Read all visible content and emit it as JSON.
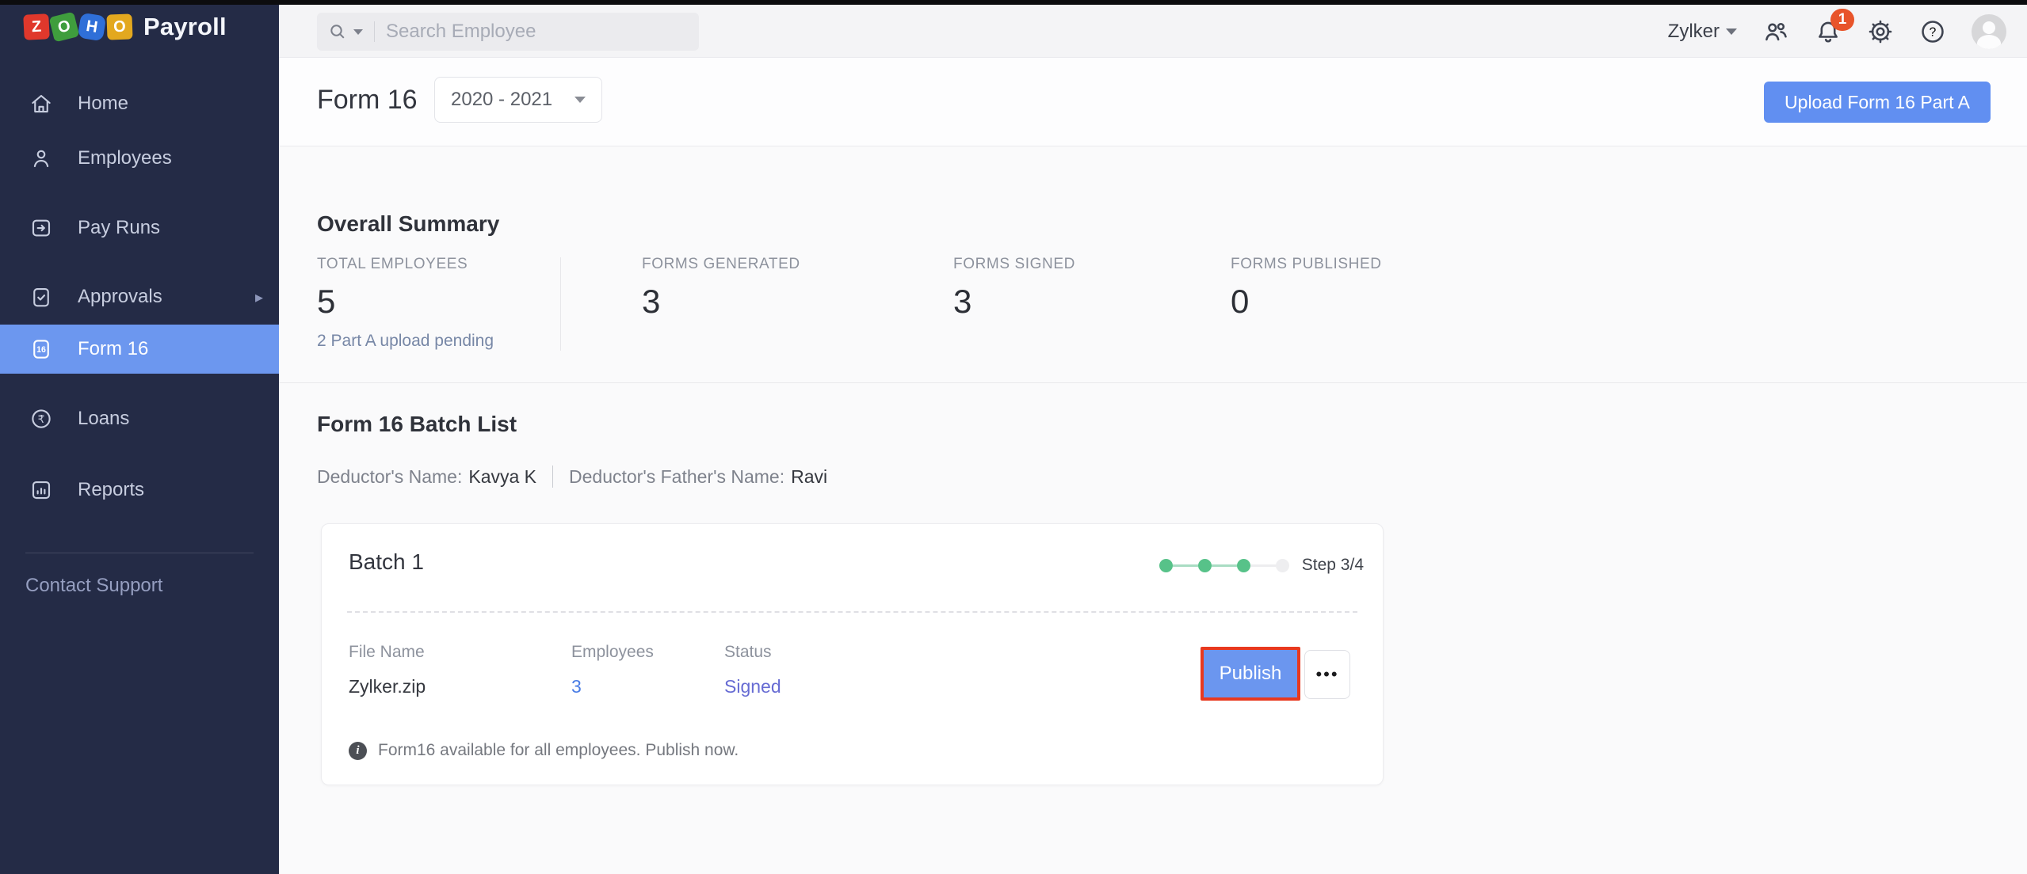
{
  "brand": {
    "letters": [
      "Z",
      "O",
      "H",
      "O"
    ],
    "product": "Payroll"
  },
  "sidebar": {
    "items": [
      {
        "label": "Home"
      },
      {
        "label": "Employees"
      },
      {
        "label": "Pay Runs"
      },
      {
        "label": "Approvals"
      },
      {
        "label": "Form 16"
      },
      {
        "label": "Loans"
      },
      {
        "label": "Reports"
      }
    ],
    "selected_item": "Form 16",
    "support_link": "Contact Support"
  },
  "topbar": {
    "search_placeholder": "Search Employee",
    "org_name": "Zylker",
    "notification_count": "1"
  },
  "header": {
    "title": "Form 16",
    "year_selector": "2020 - 2021",
    "upload_button": "Upload Form 16 Part A"
  },
  "summary": {
    "title": "Overall Summary",
    "stats": [
      {
        "label": "TOTAL EMPLOYEES",
        "value": "5",
        "note": "2 Part A upload pending"
      },
      {
        "label": "FORMS GENERATED",
        "value": "3"
      },
      {
        "label": "FORMS SIGNED",
        "value": "3"
      },
      {
        "label": "FORMS PUBLISHED",
        "value": "0"
      }
    ]
  },
  "batch_list": {
    "title": "Form 16 Batch List",
    "deductor_name_label": "Deductor's Name:",
    "deductor_name": "Kavya K",
    "father_name_label": "Deductor's Father's Name:",
    "father_name": "Ravi",
    "batch": {
      "name": "Batch 1",
      "steps_total": 4,
      "steps_done": 3,
      "step_text": "Step 3/4",
      "file_name_label": "File Name",
      "file_name": "Zylker.zip",
      "employees_label": "Employees",
      "employees_count": "3",
      "status_label": "Status",
      "status_value": "Signed",
      "publish_button": "Publish",
      "more_button": "•••",
      "info_note": "Form16 available for all employees. Publish now."
    }
  },
  "colors": {
    "sidebar_bg": "#242b46",
    "selected_nav": "#6c97ef",
    "accent_blue": "#618ff1",
    "badge_orange": "#e8542a",
    "success_green": "#57c289",
    "status_signed": "#666bd3",
    "link_blue": "#4a7de5",
    "highlight_red": "#e8391f"
  }
}
